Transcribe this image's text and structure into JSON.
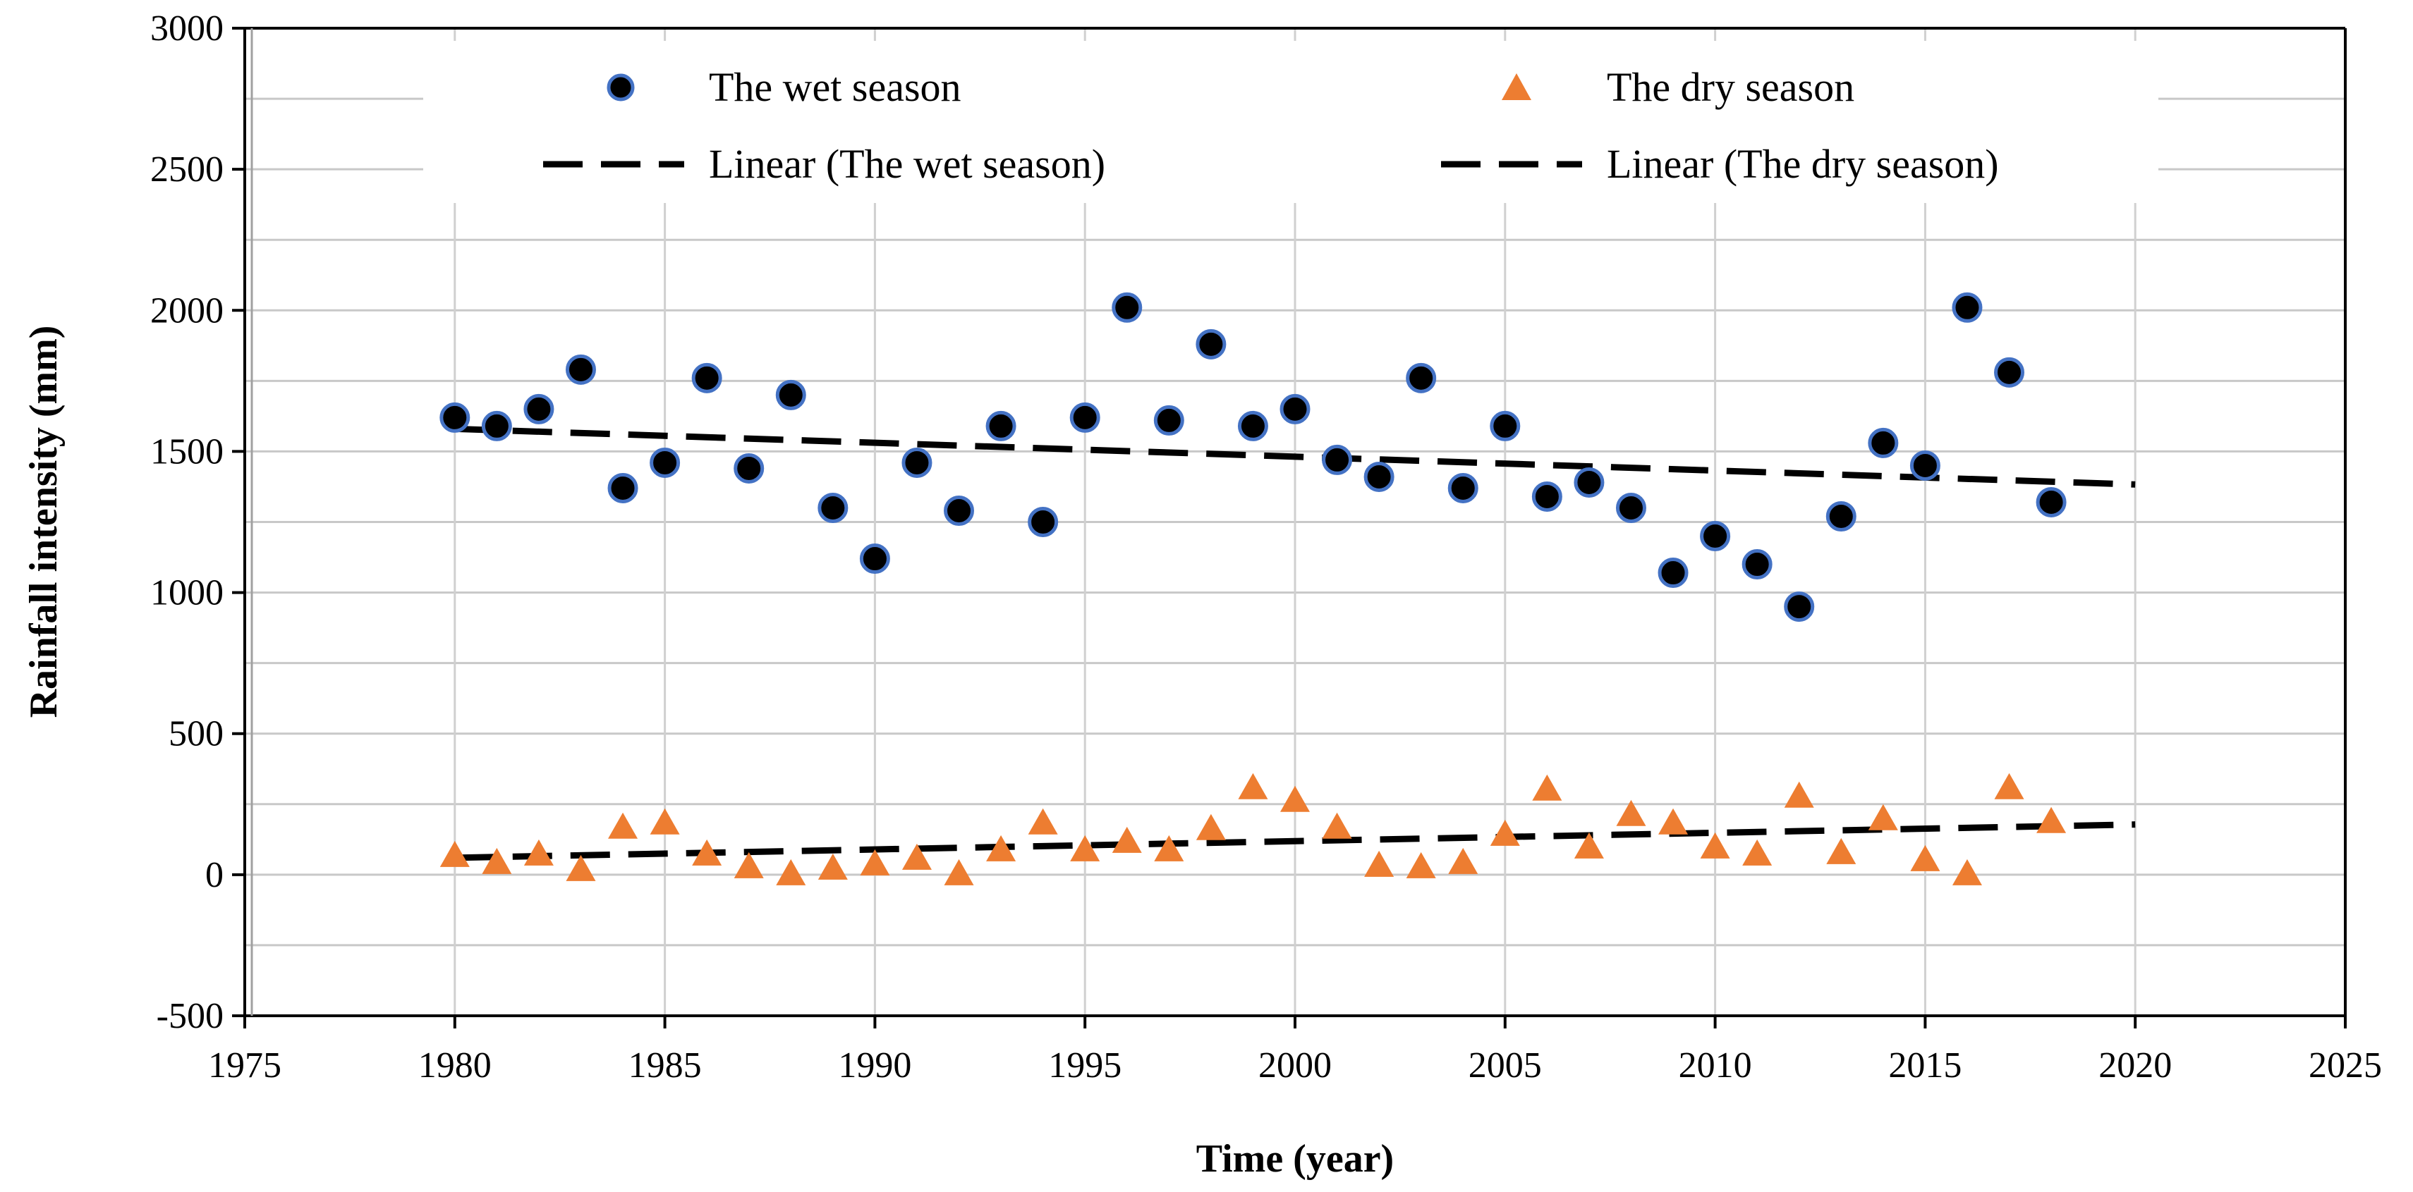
{
  "chart_data": {
    "type": "scatter",
    "title": "",
    "xlabel": "Time (year)",
    "ylabel": "Rainfall intensity (mm)",
    "xlim": [
      1975,
      2025
    ],
    "ylim": [
      -500,
      3000
    ],
    "x_ticks": [
      1975,
      1980,
      1985,
      1990,
      1995,
      2000,
      2005,
      2010,
      2015,
      2020,
      2025
    ],
    "y_ticks": [
      -500,
      0,
      500,
      1000,
      1500,
      2000,
      2500,
      3000
    ],
    "x_tick_labels": [
      "1975",
      "1980",
      "1985",
      "1990",
      "1995",
      "2000",
      "2005",
      "2010",
      "2015",
      "2020",
      "2025"
    ],
    "y_tick_labels": [
      "-500",
      "0",
      "500",
      "1000",
      "1500",
      "2000",
      "2500",
      "3000"
    ],
    "grid": true,
    "legend_position": "top",
    "x": [
      1980,
      1981,
      1982,
      1983,
      1984,
      1985,
      1986,
      1987,
      1988,
      1989,
      1990,
      1991,
      1992,
      1993,
      1994,
      1995,
      1996,
      1997,
      1998,
      1999,
      2000,
      2001,
      2002,
      2003,
      2004,
      2005,
      2006,
      2007,
      2008,
      2009,
      2010,
      2011,
      2012,
      2013,
      2014,
      2015,
      2016,
      2017,
      2018
    ],
    "series": [
      {
        "name": "The wet season",
        "marker": "circle",
        "color": "#000000",
        "edge_color": "#4472C4",
        "values": [
          1620,
          1590,
          1650,
          1790,
          1370,
          1460,
          1760,
          1440,
          1700,
          1300,
          1120,
          1460,
          1290,
          1590,
          1250,
          1620,
          2010,
          1610,
          1880,
          1590,
          1650,
          1470,
          1410,
          1760,
          1370,
          1590,
          1340,
          1390,
          1300,
          1070,
          1200,
          1100,
          950,
          1270,
          1530,
          1450,
          2010,
          1780,
          1320
        ]
      },
      {
        "name": "The dry season",
        "marker": "triangle",
        "color": "#ED7D31",
        "values": [
          70,
          45,
          75,
          20,
          170,
          185,
          75,
          30,
          5,
          25,
          40,
          60,
          5,
          90,
          185,
          90,
          120,
          90,
          165,
          310,
          265,
          170,
          35,
          30,
          45,
          145,
          305,
          100,
          215,
          185,
          100,
          75,
          280,
          80,
          200,
          55,
          5,
          310,
          190
        ]
      }
    ],
    "trendlines": [
      {
        "name": "Linear (The wet season)",
        "x": [
          1980,
          2020
        ],
        "y": [
          1580,
          1383
        ],
        "color": "#000000",
        "style": "dashed"
      },
      {
        "name": "Linear (The dry season)",
        "x": [
          1980,
          2020
        ],
        "y": [
          60,
          178
        ],
        "color": "#000000",
        "style": "dashed"
      }
    ]
  }
}
